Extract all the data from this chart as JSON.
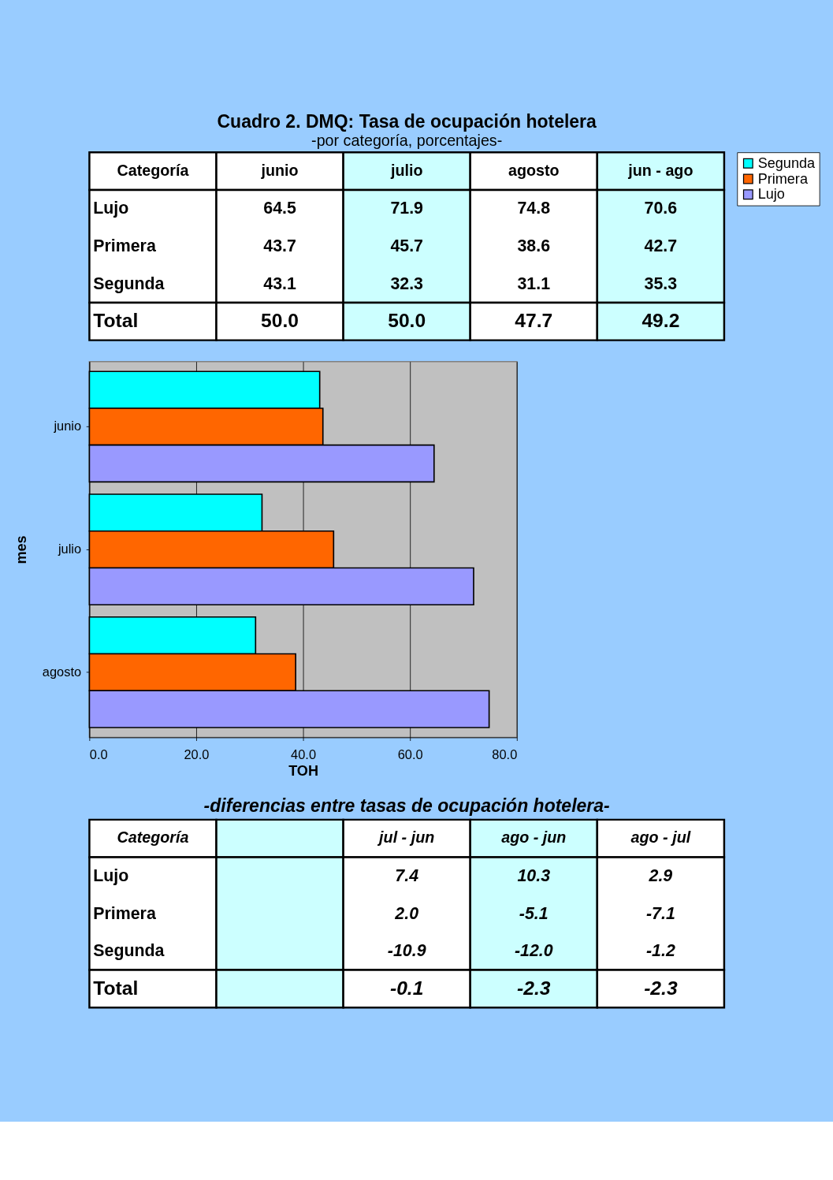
{
  "chart_data": [
    {
      "type": "other",
      "title": "Cuadro 2.    DMQ:  Tasa de ocupación hotelera",
      "subtitle": "-por categoría, porcentajes-",
      "ylabel": "Categoría",
      "categories": [
        "Lujo",
        "Primera",
        "Segunda",
        "Total"
      ],
      "series": [
        {
          "name": "junio",
          "color": "#ffffff",
          "values": [
            64.5,
            43.7,
            43.1,
            50.0
          ],
          "value_labels": [
            "64.5",
            "43.7",
            "43.1",
            "50.0"
          ]
        },
        {
          "name": "julio",
          "color": "#ccffff",
          "values": [
            71.9,
            45.7,
            32.3,
            50.0
          ],
          "value_labels": [
            "71.9",
            "45.7",
            "32.3",
            "50.0"
          ]
        },
        {
          "name": "agosto",
          "color": "#ffffff",
          "values": [
            74.8,
            38.6,
            31.1,
            47.7
          ],
          "value_labels": [
            "74.8",
            "38.6",
            "31.1",
            "47.7"
          ]
        },
        {
          "name": "jun - ago",
          "color": "#ccffff",
          "values": [
            70.6,
            42.7,
            35.3,
            49.2
          ],
          "value_labels": [
            "70.6",
            "42.7",
            "35.3",
            "49.2"
          ]
        }
      ]
    },
    {
      "type": "bar",
      "orientation": "horizontal",
      "categories": [
        "junio",
        "julio",
        "agosto"
      ],
      "xlabel": "TOH",
      "ylabel": "mes",
      "xlim": [
        0,
        80
      ],
      "xticks": [
        {
          "value": 0,
          "label": "0.0"
        },
        {
          "value": 20,
          "label": "20.0"
        },
        {
          "value": 40,
          "label": "40.0"
        },
        {
          "value": 60,
          "label": "60.0"
        },
        {
          "value": 80,
          "label": "80.0"
        }
      ],
      "grid": "x",
      "legend": "right",
      "series": [
        {
          "name": "Segunda",
          "color": "#00ffff",
          "values": [
            43.1,
            32.3,
            31.1
          ]
        },
        {
          "name": "Primera",
          "color": "#ff6600",
          "values": [
            43.7,
            45.7,
            38.6
          ]
        },
        {
          "name": "Lujo",
          "color": "#9999ff",
          "values": [
            64.5,
            71.9,
            74.8
          ]
        }
      ]
    },
    {
      "type": "other",
      "title": "-diferencias entre  tasas de ocupación hotelera-",
      "ylabel": "Categoría",
      "categories": [
        "Lujo",
        "Primera",
        "Segunda",
        "Total"
      ],
      "series": [
        {
          "color": "#ccffff",
          "values": [
            null,
            null,
            null,
            null
          ]
        },
        {
          "name": "jul - jun",
          "color": "#ffffff",
          "values": [
            7.4,
            2.0,
            -10.9,
            -0.1
          ],
          "value_labels": [
            "7.4",
            "2.0",
            "-10.9",
            "-0.1"
          ]
        },
        {
          "name": "ago - jun",
          "color": "#ccffff",
          "values": [
            10.3,
            -5.1,
            -12.0,
            -2.3
          ],
          "value_labels": [
            "10.3",
            "-5.1",
            "-12.0",
            "-2.3"
          ]
        },
        {
          "name": "ago - jul",
          "color": "#ffffff",
          "values": [
            2.9,
            -7.1,
            -1.2,
            -2.3
          ],
          "value_labels": [
            "2.9",
            "-7.1",
            "-1.2",
            "-2.3"
          ]
        }
      ]
    }
  ]
}
